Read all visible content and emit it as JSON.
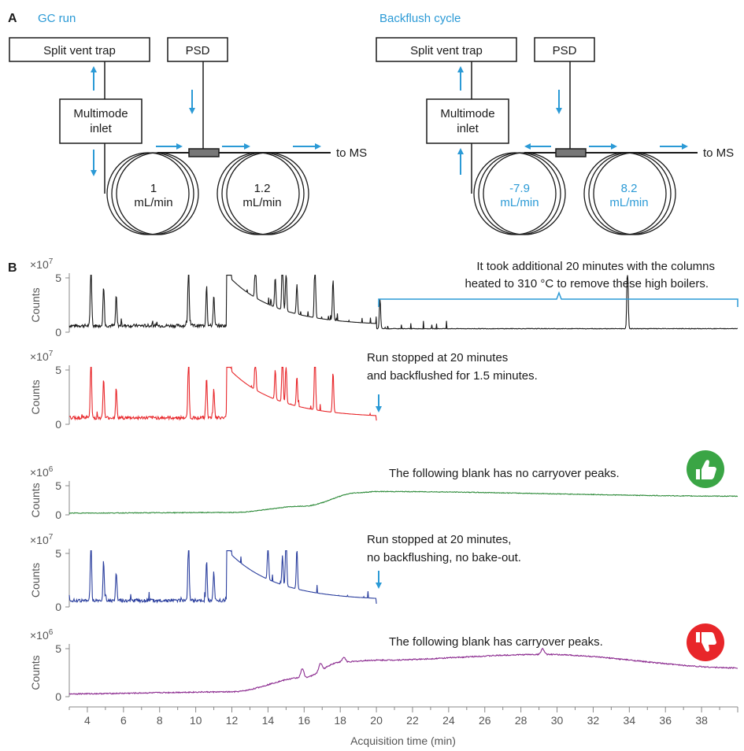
{
  "panel_a": {
    "label": "A",
    "left_title": "GC run",
    "right_title": "Backflush cycle",
    "left": {
      "split_vent": "Split vent trap",
      "psd": "PSD",
      "inlet_line1": "Multimode",
      "inlet_line2": "inlet",
      "col1_line1": "1",
      "col1_line2": "mL/min",
      "col2_line1": "1.2",
      "col2_line2": "mL/min",
      "to_ms": "to MS"
    },
    "right": {
      "split_vent": "Split vent trap",
      "psd": "PSD",
      "inlet_line1": "Multimode",
      "inlet_line2": "inlet",
      "col1_line1": "-7.9",
      "col1_line2": "mL/min",
      "col2_line1": "8.2",
      "col2_line2": "mL/min",
      "to_ms": "to MS"
    }
  },
  "panel_b": {
    "label": "B",
    "ylabel": "Counts",
    "traces": [
      {
        "scale": "×10",
        "exp": "7",
        "ytick_top": "5",
        "ytick_zero": "0",
        "color": "#1a1a1a",
        "annotation_line1": "It took additional 20 minutes with the columns",
        "annotation_line2": "heated to 310 °C to remove these high boilers."
      },
      {
        "scale": "×10",
        "exp": "7",
        "ytick_top": "5",
        "ytick_zero": "0",
        "color": "#e8262a",
        "annotation_line1": "Run stopped at 20 minutes",
        "annotation_line2": "and backflushed for 1.5 minutes."
      },
      {
        "scale": "×10",
        "exp": "6",
        "ytick_top": "5",
        "ytick_zero": "0",
        "color": "#2e8b3a",
        "annotation_line1": "The following blank has no carryover peaks.",
        "annotation_line2": ""
      },
      {
        "scale": "×10",
        "exp": "7",
        "ytick_top": "5",
        "ytick_zero": "0",
        "color": "#2b3f9e",
        "annotation_line1": "Run stopped at 20 minutes,",
        "annotation_line2": "no backflushing, no bake-out."
      },
      {
        "scale": "×10",
        "exp": "6",
        "ytick_top": "5",
        "ytick_zero": "0",
        "color": "#8b2a8f",
        "annotation_line1": "The following blank has carryover peaks.",
        "annotation_line2": ""
      }
    ],
    "xlabel": "Acquisition time (min)",
    "xticks": [
      "4",
      "6",
      "8",
      "10",
      "12",
      "14",
      "16",
      "18",
      "20",
      "22",
      "24",
      "26",
      "28",
      "30",
      "32",
      "34",
      "36",
      "38"
    ],
    "thumb_up_color": "#3aa545",
    "thumb_down_color": "#e8262a",
    "accent_color": "#2b9ad6"
  },
  "chart_data": {
    "type": "line",
    "x_range": [
      3,
      40
    ],
    "xlabel": "Acquisition time (min)",
    "ylabel": "Counts",
    "series": [
      {
        "peaks_min": [
          4.2,
          4.9,
          5.6,
          9.6,
          10.6,
          11.0,
          11.8,
          13.3,
          14.4,
          14.8,
          15.0,
          15.6,
          16.6,
          17.6,
          20.2,
          33.9
        ]
      },
      {
        "peaks_min": [
          4.2,
          4.9,
          5.6,
          9.6,
          10.6,
          11.0,
          11.8,
          13.3,
          14.4,
          14.8,
          15.0,
          15.6,
          16.6,
          17.6
        ]
      },
      {
        "description_points": [
          [
            3,
            0.3
          ],
          [
            12,
            0.4
          ],
          [
            16,
            1.5
          ],
          [
            19,
            3.8
          ],
          [
            20,
            4.0
          ],
          [
            40,
            3.2
          ]
        ]
      },
      {
        "peaks_min": [
          4.2,
          4.9,
          5.6,
          9.6,
          10.6,
          11.0,
          11.8,
          14.0,
          14.8,
          15.0,
          15.6
        ]
      },
      {
        "description_points": [
          [
            3,
            0.3
          ],
          [
            12,
            0.5
          ],
          [
            16,
            2.0
          ],
          [
            18,
            3.6
          ],
          [
            20,
            3.8
          ],
          [
            29.2,
            4.4
          ],
          [
            40,
            3.0
          ]
        ]
      }
    ]
  }
}
